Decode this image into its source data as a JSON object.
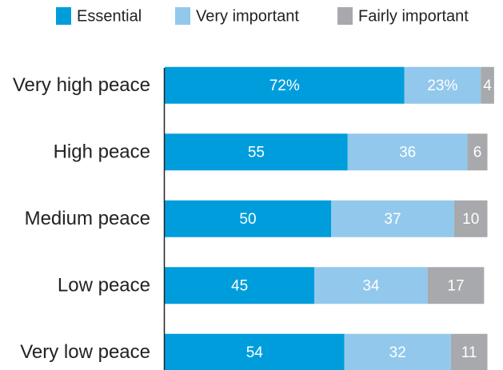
{
  "chart_data": {
    "type": "bar",
    "orientation": "horizontal",
    "stacked": true,
    "categories": [
      "Very high peace",
      "High peace",
      "Medium peace",
      "Low peace",
      "Very low peace"
    ],
    "series": [
      {
        "name": "Essential",
        "color": "#009ddc",
        "values": [
          72,
          55,
          50,
          45,
          54
        ],
        "value_labels": [
          "72%",
          "55",
          "50",
          "45",
          "54"
        ]
      },
      {
        "name": "Very important",
        "color": "#92c8ec",
        "values": [
          23,
          36,
          37,
          34,
          32
        ],
        "value_labels": [
          "23%",
          "36",
          "37",
          "34",
          "32"
        ]
      },
      {
        "name": "Fairly important",
        "color": "#a7a9ac",
        "values": [
          4,
          6,
          10,
          17,
          11
        ]
      }
    ],
    "xlim": [
      0,
      100
    ],
    "legend": "top"
  }
}
